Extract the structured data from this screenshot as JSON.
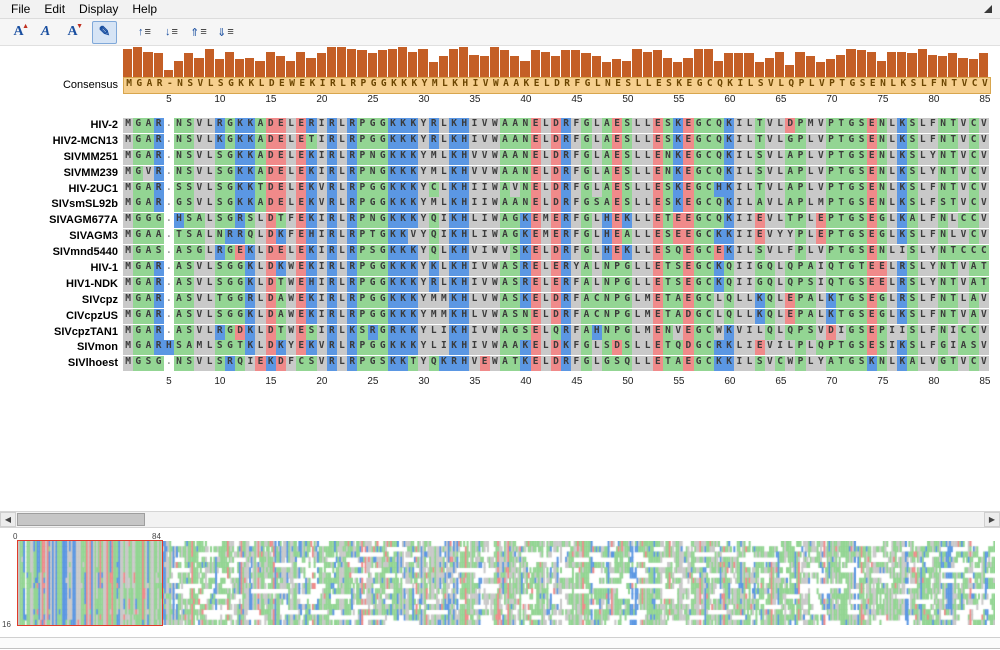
{
  "menu": {
    "items": [
      "File",
      "Edit",
      "Display",
      "Help"
    ]
  },
  "toolbar": {
    "icons": [
      {
        "name": "font-enlarge-icon",
        "main": "A",
        "mark": "▲"
      },
      {
        "name": "font-italic-icon",
        "main": "A",
        "italic": true
      },
      {
        "name": "font-shrink-icon",
        "main": "A",
        "mark": "▼"
      },
      {
        "name": "edit-mode-icon",
        "main": "✎",
        "pressed": true
      },
      {
        "name": "row-move-up-icon",
        "arrow": "↑",
        "lines": "≡"
      },
      {
        "name": "row-move-down-icon",
        "arrow": "↓",
        "lines": "≡"
      },
      {
        "name": "rows-move-top-icon",
        "arrow": "⇑",
        "lines": "≡"
      },
      {
        "name": "rows-move-bottom-icon",
        "arrow": "⇓",
        "lines": "≡"
      }
    ]
  },
  "palette": {
    "blue": "#5b97e3",
    "green": "#93d593",
    "red": "#f08a8a",
    "gray": "#c9c9c9",
    "gap": "#ffffff",
    "consensus_bg": "#f6cf8e",
    "histogram": "#c45f26",
    "selection_red": "#e23a2a"
  },
  "alignment": {
    "consensus_label": "Consensus",
    "consensus": "MGAR-NSVLSGKKLDEWEKIRLRPGGKKKYMLKHIVWAAKELDRFGLNESLLESKEGCQKILSVLQPLVPTGSENLKSLFNTVCV",
    "ruler_ticks": [
      5,
      10,
      15,
      20,
      25,
      30,
      35,
      40,
      45,
      50,
      55,
      60,
      65,
      70,
      75,
      80,
      85
    ],
    "histogram": [
      95,
      100,
      85,
      80,
      25,
      55,
      80,
      65,
      95,
      60,
      85,
      60,
      65,
      55,
      85,
      70,
      55,
      85,
      65,
      80,
      100,
      100,
      95,
      90,
      80,
      90,
      95,
      100,
      85,
      95,
      50,
      70,
      95,
      100,
      75,
      70,
      100,
      90,
      70,
      55,
      90,
      85,
      70,
      90,
      90,
      80,
      70,
      50,
      60,
      55,
      95,
      85,
      90,
      65,
      50,
      65,
      95,
      95,
      55,
      80,
      80,
      80,
      50,
      65,
      85,
      40,
      85,
      70,
      50,
      60,
      75,
      95,
      90,
      85,
      55,
      85,
      85,
      80,
      95,
      75,
      70,
      80,
      65,
      60,
      80
    ],
    "sequences": [
      {
        "name": "HIV-2",
        "seq": "MGAR.NSVLRGKKADELERIRLRPGGKKKYRLKHIVWAANELDRFGLAESLLESKEGCQKILTVLDPMVPTGSENLKSLFNTVCV"
      },
      {
        "name": "HIV2-MCN13",
        "seq": "MGAR.NSVLKGKKADELETIRLRPGGKKKYRLKHIVWAANELDRFGLAESLLESKEGCQKILTVLGPLVPTGSENLKSLFNTVCV"
      },
      {
        "name": "SIVMM251",
        "seq": "MGAR.NSVLSGKKADELEKIRLRPNGKKKYMLKHVVWAANELDRFGLAESLLENKEGCQKILSVLAPLVPTGSENLKSLYNTVCV"
      },
      {
        "name": "SIVMM239",
        "seq": "MGVR.NSVLSGKKADELEKIRLRPNGKKKYMLKHVVWAANELDRFGLAESLLENKEGCQKILSVLAPLVPTGSENLKSLYNTVCV"
      },
      {
        "name": "HIV-2UC1",
        "seq": "MGAR.SSVLSGKKTDELEKVRLRPGGKKKYCLKHIIWAVNELDRFGLAESLLESKEGCHKILTVLAPLVPTGSENLKSLFNTVCV"
      },
      {
        "name": "SIVsmSL92b",
        "seq": "MGAR.GSVLSGKKADELEKVRLRPGGKKKYMLKHIIWAANELDRFGSAESLLESKEGCQKILAVLAPLMPTGSENLKSLFSTVCV"
      },
      {
        "name": "SIVAGM677A",
        "seq": "MGGG.HSALSGRSLDTFEKIRLRPNGKKKYQIKHLIWAGKEMERFGLHEKLLETEEGCQKIIEVLTPLEPTGSEGLKALFNLCCV"
      },
      {
        "name": "SIVAGM3",
        "seq": "MGAA.TSALNRRQLDKFEHIRLRPTGKKVYQIKHLIWAGKEMERFGLHEALLESEEGCKKIIEVYYPLEPTGSEGLKSLFNLVCV"
      },
      {
        "name": "SIVmnd5440",
        "seq": "MGAS.ASGLRGEKLDELEKIRLRPSGKKKYQLKHVIWVSKELDRFGLHEKLLESQEGCEKILSVLFPLVPTGSENLISLYNTCCC"
      },
      {
        "name": "HIV-1",
        "seq": "MGAR.ASVLSGGKLDKWEKIRLRPGGKKKYKLKHIVWASRELERYALNPGLLETSEGCKQIIGQLQPAIQTGTEELRSLYNTVAT"
      },
      {
        "name": "HIV1-NDK",
        "seq": "MGAR.ASVLSGGKLDTWEHIRLRPGGKKKYRLKHIVWASRELERFALNPGLLETSEGCKQIIGQLQPSIQTGSEELRSLYNTVAT"
      },
      {
        "name": "SIVcpz",
        "seq": "MGAR.ASVLTGGRLDAWEKIRLRPGGKKKYMMKHLVWASKELDRFACNPGLMETAEGCLQLLKQLEPALKTGSEGLRSLFNTLAV"
      },
      {
        "name": "CIVcpzUS",
        "seq": "MGAR.ASVLSGGKLDAWEKIRLRPGGKKKYMMKHLVWASNELDRFACNPGLMETADGCLQLLKQLEPALKTGSEGLKSLFNTVAV"
      },
      {
        "name": "SIVcpzTAN1",
        "seq": "MGAR.ASVLRGDKLDTWESIRLKSRGRKKYLIKHIVWAGSELQRFAHNPGLMENVEGCWKVILQLQPSVDIGSEPIISLFNICCV"
      },
      {
        "name": "SIVmon",
        "seq": "MGARHSAMLSGTKLDKYEKVRLRPGGKKKYLIKHIVWAAKELDKFGLSDSLLETQDGCRKLIEVILPLQPTGSESIKSLFGIASV"
      },
      {
        "name": "SIVlhoest",
        "seq": "MGSG.NSVLSRQIEKDFCSVRLRPGSKKTYQKRHVEWATKELDRFGLGSQLLETAEGCKKILSVCWPLYATGSKNLKALVGTVCV"
      }
    ]
  },
  "scrollbar": {
    "left_arrow": "◀",
    "right_arrow": "▶"
  },
  "overview": {
    "top_left_label": "0",
    "top_right_label": "84",
    "bottom_left_label": "16"
  }
}
